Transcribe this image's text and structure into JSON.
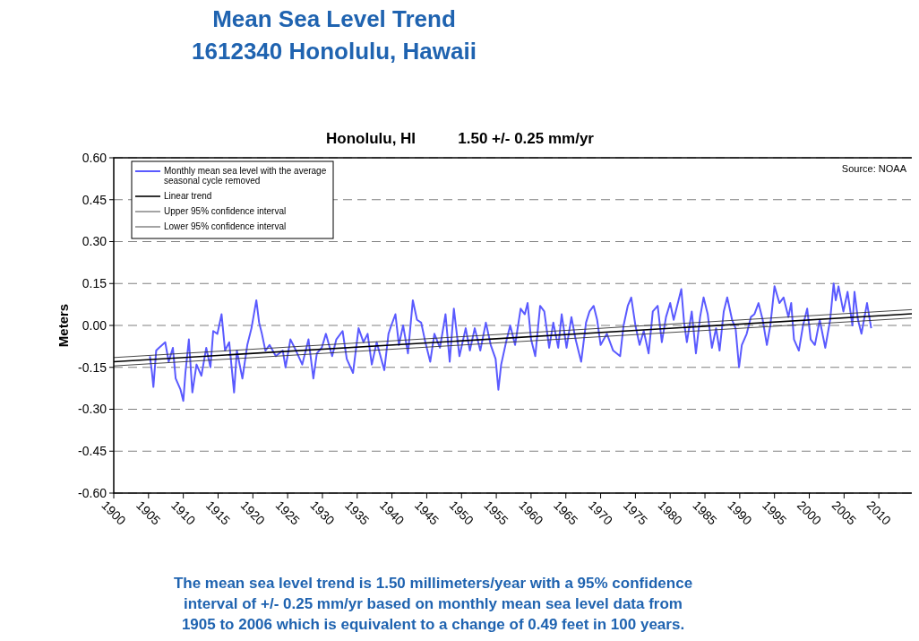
{
  "chart_data": {
    "type": "line",
    "title": "Mean Sea Level Trend\n1612340 Honolulu, Hawaii",
    "subtitle": "Honolulu, HI          1.50 +/- 0.25 mm/yr",
    "ylabel": "Meters",
    "annotations": [
      "Source: NOAA",
      "The mean sea level trend is 1.50 millimeters/year with a 95% confidence interval of +/- 0.25 mm/yr based on monthly mean sea level data from 1905 to 2006 which is equivalent to a change of 0.49 feet in 100 years."
    ],
    "xlim": [
      1900,
      2015
    ],
    "xticks": [
      1900,
      1905,
      1910,
      1915,
      1920,
      1925,
      1930,
      1935,
      1940,
      1945,
      1950,
      1955,
      1960,
      1965,
      1970,
      1975,
      1980,
      1985,
      1990,
      1995,
      2000,
      2005,
      2010
    ],
    "ylim": [
      -0.6,
      0.6
    ],
    "yticks": [
      {
        "value": -0.6,
        "label": "-0.60"
      },
      {
        "value": -0.45,
        "label": "-0.45"
      },
      {
        "value": -0.3,
        "label": "-0.30"
      },
      {
        "value": -0.15,
        "label": "-0.15"
      },
      {
        "value": 0,
        "label": "0.00"
      },
      {
        "value": 0.15,
        "label": "0.15"
      },
      {
        "value": 0.3,
        "label": "0.30"
      },
      {
        "value": 0.45,
        "label": "0.45"
      },
      {
        "value": 0.6,
        "label": "0.60"
      }
    ],
    "grid": "y",
    "legend": "top left",
    "line_style": "solid",
    "marker": "none",
    "series": [
      {
        "name": "Monthly mean sea level with the average seasonal cycle removed",
        "color": "#5a5aff",
        "x": [
          1905.2,
          1905.5,
          1905.7,
          1906.1,
          1906.5,
          1907.4,
          1907.9,
          1908.5,
          1908.9,
          1909.6,
          1910.0,
          1910.3,
          1910.8,
          1911.3,
          1911.9,
          1912.6,
          1913.3,
          1913.9,
          1914.3,
          1914.9,
          1915.5,
          1916.0,
          1916.6,
          1917.3,
          1917.7,
          1918.5,
          1919.2,
          1919.8,
          1920.5,
          1920.9,
          1921.3,
          1921.8,
          1922.4,
          1923.3,
          1924.3,
          1924.7,
          1925.4,
          1926.2,
          1927.1,
          1928.0,
          1928.7,
          1929.2,
          1929.9,
          1930.5,
          1931.4,
          1932.0,
          1932.9,
          1933.5,
          1934.4,
          1935.2,
          1935.9,
          1936.5,
          1937.1,
          1937.8,
          1938.9,
          1939.5,
          1939.9,
          1940.5,
          1941.0,
          1941.6,
          1942.3,
          1943.0,
          1943.6,
          1944.2,
          1944.8,
          1945.5,
          1946.1,
          1946.9,
          1947.7,
          1948.3,
          1948.9,
          1949.7,
          1950.6,
          1951.2,
          1951.9,
          1952.7,
          1953.5,
          1954.2,
          1954.9,
          1955.3,
          1955.7,
          1956.4,
          1957.0,
          1957.7,
          1958.5,
          1959.1,
          1959.5,
          1960.0,
          1960.6,
          1961.3,
          1961.9,
          1962.6,
          1963.2,
          1963.9,
          1964.4,
          1965.1,
          1965.8,
          1966.4,
          1967.2,
          1967.9,
          1968.4,
          1969.0,
          1969.5,
          1970.0,
          1970.9,
          1971.8,
          1972.8,
          1973.3,
          1973.9,
          1974.4,
          1975.0,
          1975.6,
          1976.2,
          1976.9,
          1977.5,
          1978.2,
          1978.8,
          1979.4,
          1980.0,
          1980.5,
          1981.2,
          1981.6,
          1982.0,
          1982.4,
          1983.1,
          1983.7,
          1984.3,
          1984.8,
          1985.4,
          1986.0,
          1986.6,
          1987.1,
          1987.7,
          1988.2,
          1988.9,
          1989.4,
          1989.9,
          1990.3,
          1991.0,
          1991.6,
          1992.1,
          1992.7,
          1993.3,
          1993.9,
          1994.4,
          1995.0,
          1995.7,
          1996.3,
          1997.0,
          1997.4,
          1997.8,
          1998.5,
          1999.1,
          1999.7,
          2000.2,
          2000.8,
          2001.5,
          2002.3,
          2003.0,
          2003.5,
          2003.8,
          2004.2,
          2004.9,
          2005.5,
          2006.2,
          2006.5,
          2007.0,
          2007.5,
          2008.3,
          2008.9
        ],
        "values": [
          -0.11,
          -0.17,
          -0.22,
          -0.09,
          -0.08,
          -0.06,
          -0.13,
          -0.08,
          -0.19,
          -0.23,
          -0.27,
          -0.17,
          -0.05,
          -0.24,
          -0.14,
          -0.18,
          -0.08,
          -0.15,
          -0.02,
          -0.03,
          0.04,
          -0.09,
          -0.06,
          -0.24,
          -0.09,
          -0.19,
          -0.07,
          -0.01,
          0.09,
          0.01,
          -0.03,
          -0.09,
          -0.07,
          -0.11,
          -0.09,
          -0.15,
          -0.05,
          -0.09,
          -0.14,
          -0.05,
          -0.19,
          -0.1,
          -0.08,
          -0.03,
          -0.11,
          -0.05,
          -0.02,
          -0.12,
          -0.17,
          -0.01,
          -0.06,
          -0.03,
          -0.14,
          -0.06,
          -0.16,
          -0.03,
          0.0,
          0.04,
          -0.07,
          0.0,
          -0.1,
          0.09,
          0.02,
          0.01,
          -0.06,
          -0.13,
          -0.03,
          -0.08,
          0.04,
          -0.13,
          0.06,
          -0.11,
          -0.01,
          -0.09,
          -0.01,
          -0.09,
          0.01,
          -0.07,
          -0.12,
          -0.23,
          -0.14,
          -0.06,
          0.0,
          -0.07,
          0.06,
          0.04,
          0.08,
          -0.05,
          -0.11,
          0.07,
          0.05,
          -0.08,
          0.01,
          -0.08,
          0.04,
          -0.08,
          0.03,
          -0.05,
          -0.13,
          0.01,
          0.05,
          0.07,
          0.02,
          -0.07,
          -0.03,
          -0.09,
          -0.11,
          0.0,
          0.07,
          0.1,
          0.0,
          -0.07,
          -0.02,
          -0.1,
          0.05,
          0.07,
          -0.06,
          0.03,
          0.08,
          0.02,
          0.09,
          0.13,
          0.01,
          -0.06,
          0.05,
          -0.1,
          0.03,
          0.1,
          0.04,
          -0.08,
          -0.01,
          -0.09,
          0.05,
          0.1,
          0.02,
          -0.01,
          -0.15,
          -0.07,
          -0.03,
          0.03,
          0.04,
          0.08,
          0.02,
          -0.07,
          0.0,
          0.14,
          0.08,
          0.1,
          0.03,
          0.08,
          -0.05,
          -0.09,
          0.0,
          0.06,
          -0.05,
          -0.07,
          0.02,
          -0.08,
          0.02,
          0.15,
          0.09,
          0.14,
          0.05,
          0.12,
          0.0,
          0.12,
          0.02,
          -0.03,
          0.08,
          -0.01
        ]
      },
      {
        "name": "Linear trend",
        "color": "#000000",
        "x": [
          1900,
          2015
        ],
        "values": [
          -0.13,
          0.042
        ]
      },
      {
        "name": "Upper 95% confidence interval",
        "color": "#333333",
        "x": [
          1900,
          2015
        ],
        "values": [
          -0.115,
          0.057
        ]
      },
      {
        "name": "Lower 95% confidence interval",
        "color": "#333333",
        "x": [
          1900,
          2015
        ],
        "values": [
          -0.145,
          0.027
        ]
      }
    ]
  }
}
